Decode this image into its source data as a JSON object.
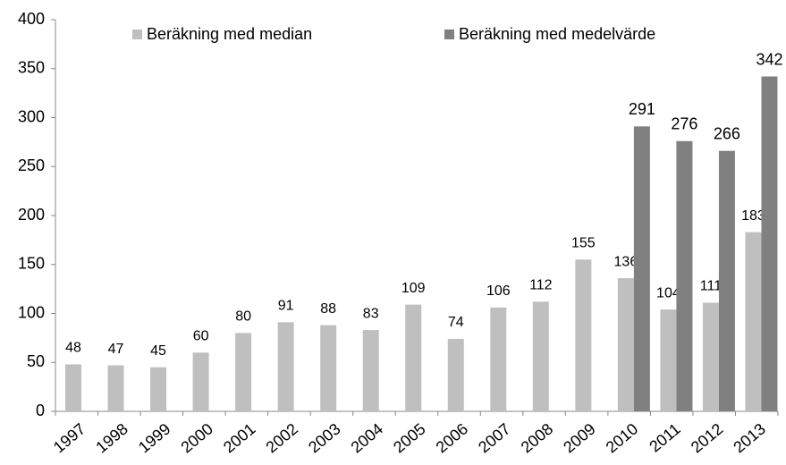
{
  "chart_data": {
    "type": "bar",
    "categories": [
      "1997",
      "1998",
      "1999",
      "2000",
      "2001",
      "2002",
      "2003",
      "2004",
      "2005",
      "2006",
      "2007",
      "2008",
      "2009",
      "2010",
      "2011",
      "2012",
      "2013"
    ],
    "series": [
      {
        "name": "Beräkning med median",
        "color": "#bfbfbf",
        "values": [
          48,
          47,
          45,
          60,
          80,
          91,
          88,
          83,
          109,
          74,
          106,
          112,
          155,
          136,
          104,
          111,
          183
        ]
      },
      {
        "name": "Beräkning med medelvärde",
        "color": "#808080",
        "values": [
          null,
          null,
          null,
          null,
          null,
          null,
          null,
          null,
          null,
          null,
          null,
          null,
          null,
          291,
          276,
          266,
          342
        ]
      }
    ],
    "ylim": [
      0,
      400
    ],
    "yticks": [
      0,
      50,
      100,
      150,
      200,
      250,
      300,
      350,
      400
    ],
    "grid": false,
    "legend": "top"
  }
}
